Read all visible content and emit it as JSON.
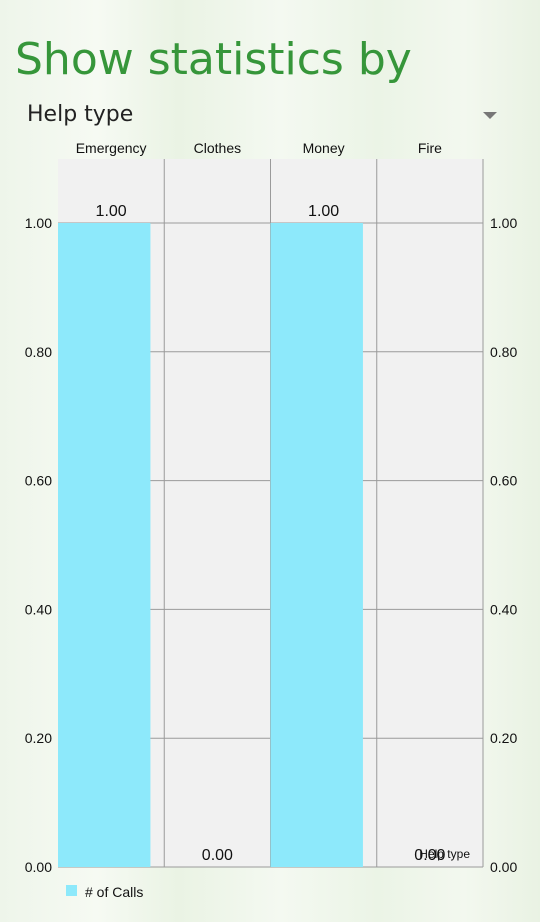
{
  "header": {
    "title": "Show statistics by"
  },
  "spinner": {
    "selected": "Help type"
  },
  "chart_data": {
    "type": "bar",
    "categories": [
      "Emergency",
      "Clothes",
      "Money",
      "Fire"
    ],
    "series": [
      {
        "name": "# of Calls",
        "values": [
          1.0,
          0.0,
          1.0,
          0.0
        ]
      }
    ],
    "value_labels": [
      "1.00",
      "0.00",
      "1.00",
      "0.00"
    ],
    "ylim": [
      0,
      1.0
    ],
    "yticks": [
      "0.00",
      "0.20",
      "0.40",
      "0.60",
      "0.80",
      "1.00"
    ],
    "xlabel": "Help type",
    "grid": true,
    "legend": "bottom-left",
    "colors": {
      "bar": "#8de9fb",
      "plot_bg": "#f1f1f1",
      "grid": "#9a9a9a"
    }
  }
}
